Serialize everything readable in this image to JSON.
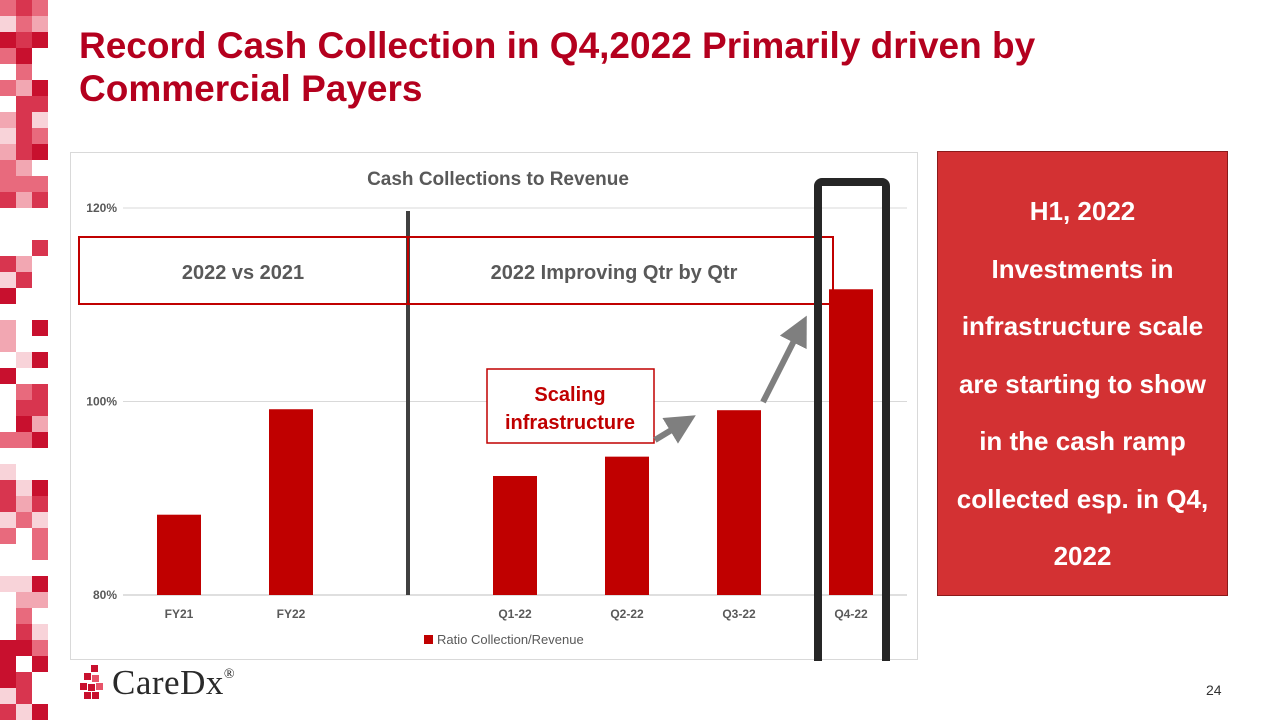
{
  "title": "Record Cash Collection in Q4,2022 Primarily driven by Commercial Payers",
  "chart_data": {
    "type": "bar",
    "title": "Cash Collections to Revenue",
    "categories": [
      "FY21",
      "FY22",
      "",
      "Q1-22",
      "Q2-22",
      "Q3-22",
      "Q4-22"
    ],
    "series": [
      {
        "name": "Ratio Collection/Revenue",
        "values": [
          88.3,
          99.2,
          null,
          92.3,
          94.3,
          99.1,
          111.6
        ]
      }
    ],
    "ylim": [
      80,
      120
    ],
    "yticks": [
      "80%",
      "100%",
      "120%"
    ],
    "grid": true,
    "legend": "bottom",
    "bar_color": "#c00000",
    "annotations": {
      "section_left": "2022 vs 2021",
      "section_right": "2022 Improving Qtr by Qtr",
      "callout": [
        "Scaling",
        "infrastructure"
      ]
    }
  },
  "side_panel": {
    "lines": [
      "H1, 2022",
      "Investments in",
      "infrastructure  scale",
      "are starting to show",
      "in the cash ramp",
      "collected esp. in Q4,",
      "2022"
    ]
  },
  "logo": {
    "text": "CareDx",
    "registered": "®"
  },
  "page_number": "24",
  "colors": {
    "brand_red": "#b4001e",
    "bar": "#c00000",
    "panel": "#d33133"
  }
}
